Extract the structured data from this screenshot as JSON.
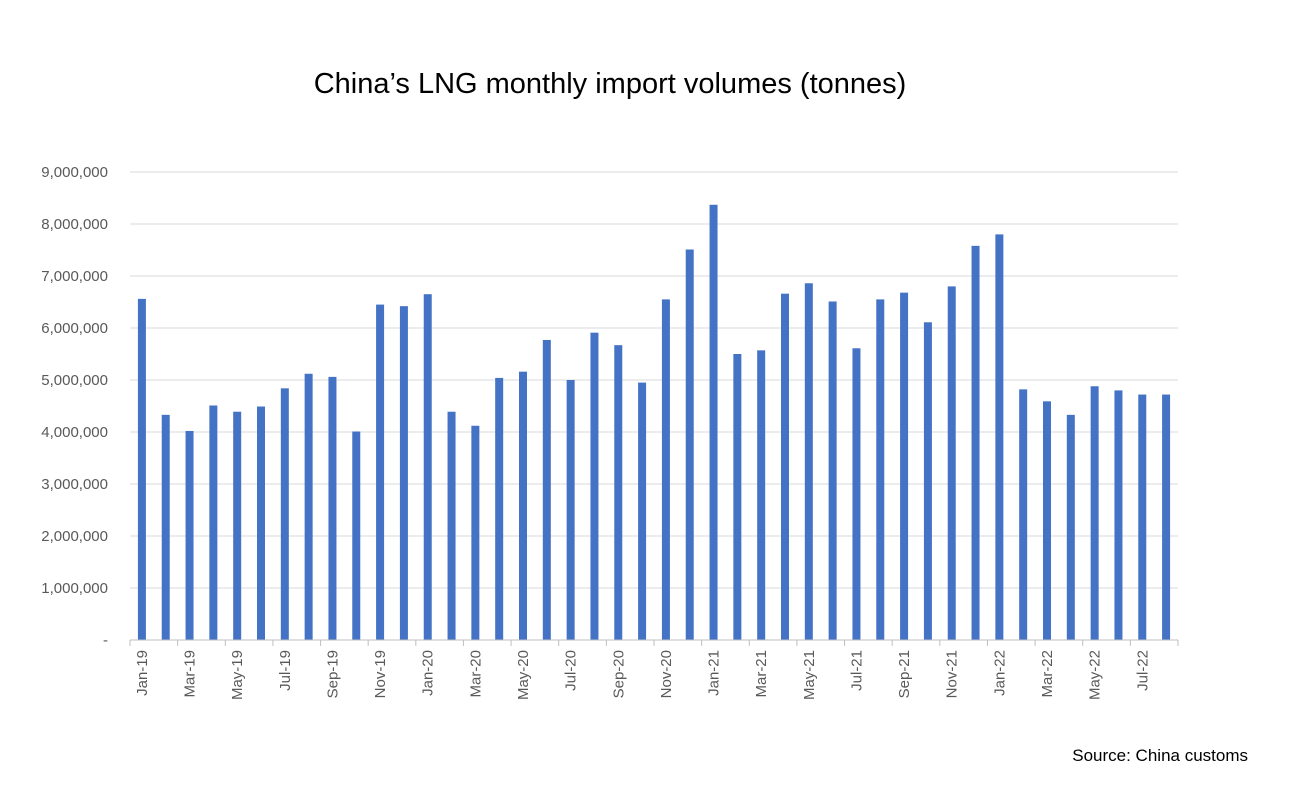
{
  "chart_data": {
    "type": "bar",
    "title": "China’s LNG monthly import volumes (tonnes)",
    "source": "Source: China customs",
    "categories": [
      "Jan-19",
      "Feb-19",
      "Mar-19",
      "Apr-19",
      "May-19",
      "Jun-19",
      "Jul-19",
      "Aug-19",
      "Sep-19",
      "Oct-19",
      "Nov-19",
      "Dec-19",
      "Jan-20",
      "Feb-20",
      "Mar-20",
      "Apr-20",
      "May-20",
      "Jun-20",
      "Jul-20",
      "Aug-20",
      "Sep-20",
      "Oct-20",
      "Nov-20",
      "Dec-20",
      "Jan-21",
      "Feb-21",
      "Mar-21",
      "Apr-21",
      "May-21",
      "Jun-21",
      "Jul-21",
      "Aug-21",
      "Sep-21",
      "Oct-21",
      "Nov-21",
      "Dec-21",
      "Jan-22",
      "Feb-22",
      "Mar-22",
      "Apr-22",
      "May-22",
      "Jun-22",
      "Jul-22",
      "Aug-22"
    ],
    "x_tick_labels": [
      "Jan-19",
      "Mar-19",
      "May-19",
      "Jul-19",
      "Sep-19",
      "Nov-19",
      "Jan-20",
      "Mar-20",
      "May-20",
      "Jul-20",
      "Sep-20",
      "Nov-20",
      "Jan-21",
      "Mar-21",
      "May-21",
      "Jul-21",
      "Sep-21",
      "Nov-21",
      "Jan-22",
      "Mar-22",
      "May-22",
      "Jul-22"
    ],
    "values": [
      6560000,
      4330000,
      4020000,
      4510000,
      4390000,
      4490000,
      4840000,
      5120000,
      5060000,
      4010000,
      6450000,
      6420000,
      6650000,
      4390000,
      4120000,
      5040000,
      5160000,
      5770000,
      5000000,
      5910000,
      5670000,
      4950000,
      6550000,
      7510000,
      8370000,
      5500000,
      5570000,
      6660000,
      6860000,
      6510000,
      5610000,
      6550000,
      6680000,
      6110000,
      6800000,
      7580000,
      7800000,
      4820000,
      4590000,
      4330000,
      4880000,
      4800000,
      4720000,
      4720000
    ],
    "ylim": [
      0,
      9000000
    ],
    "y_ticks": [
      0,
      1000000,
      2000000,
      3000000,
      4000000,
      5000000,
      6000000,
      7000000,
      8000000,
      9000000
    ],
    "y_tick_labels": [
      "-",
      "1,000,000",
      "2,000,000",
      "3,000,000",
      "4,000,000",
      "5,000,000",
      "6,000,000",
      "7,000,000",
      "8,000,000",
      "9,000,000"
    ],
    "xlabel": "",
    "ylabel": "",
    "grid": true,
    "legend": "none",
    "bar_color": "#4472C4",
    "grid_color": "#D9D9D9",
    "axis_color": "#BFBFBF"
  }
}
